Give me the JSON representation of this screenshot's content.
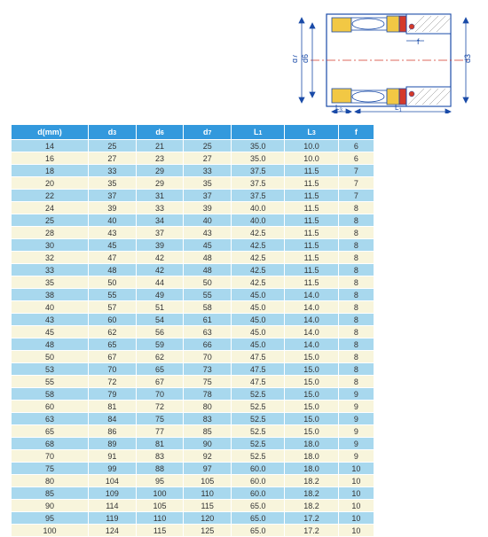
{
  "diagram": {
    "labels": {
      "d3": "d3",
      "d6": "d6",
      "d7": "d7",
      "f": "f",
      "L1": "L1",
      "L3": "L3"
    },
    "colors": {
      "outline": "#1a4ba8",
      "fill_yellow": "#f2c844",
      "fill_red": "#d43a2a",
      "fill_white": "#ffffff",
      "hatch": "#888888",
      "centerline": "#d43a2a"
    }
  },
  "table": {
    "headers": [
      "d(mm)",
      "d3",
      "d6",
      "d7",
      "L1",
      "L3",
      "f"
    ],
    "header_bg": "#3399dd",
    "header_fg": "#ffffff",
    "row_bg_blue": "#a8d8ee",
    "row_bg_yellow": "#f8f5dc",
    "cell_fg": "#333333",
    "rows": [
      [
        "14",
        "25",
        "21",
        "25",
        "35.0",
        "10.0",
        "6"
      ],
      [
        "16",
        "27",
        "23",
        "27",
        "35.0",
        "10.0",
        "6"
      ],
      [
        "18",
        "33",
        "29",
        "33",
        "37.5",
        "11.5",
        "7"
      ],
      [
        "20",
        "35",
        "29",
        "35",
        "37.5",
        "11.5",
        "7"
      ],
      [
        "22",
        "37",
        "31",
        "37",
        "37.5",
        "11.5",
        "7"
      ],
      [
        "24",
        "39",
        "33",
        "39",
        "40.0",
        "11.5",
        "8"
      ],
      [
        "25",
        "40",
        "34",
        "40",
        "40.0",
        "11.5",
        "8"
      ],
      [
        "28",
        "43",
        "37",
        "43",
        "42.5",
        "11.5",
        "8"
      ],
      [
        "30",
        "45",
        "39",
        "45",
        "42.5",
        "11.5",
        "8"
      ],
      [
        "32",
        "47",
        "42",
        "48",
        "42.5",
        "11.5",
        "8"
      ],
      [
        "33",
        "48",
        "42",
        "48",
        "42.5",
        "11.5",
        "8"
      ],
      [
        "35",
        "50",
        "44",
        "50",
        "42.5",
        "11.5",
        "8"
      ],
      [
        "38",
        "55",
        "49",
        "55",
        "45.0",
        "14.0",
        "8"
      ],
      [
        "40",
        "57",
        "51",
        "58",
        "45.0",
        "14.0",
        "8"
      ],
      [
        "43",
        "60",
        "54",
        "61",
        "45.0",
        "14.0",
        "8"
      ],
      [
        "45",
        "62",
        "56",
        "63",
        "45.0",
        "14.0",
        "8"
      ],
      [
        "48",
        "65",
        "59",
        "66",
        "45.0",
        "14.0",
        "8"
      ],
      [
        "50",
        "67",
        "62",
        "70",
        "47.5",
        "15.0",
        "8"
      ],
      [
        "53",
        "70",
        "65",
        "73",
        "47.5",
        "15.0",
        "8"
      ],
      [
        "55",
        "72",
        "67",
        "75",
        "47.5",
        "15.0",
        "8"
      ],
      [
        "58",
        "79",
        "70",
        "78",
        "52.5",
        "15.0",
        "9"
      ],
      [
        "60",
        "81",
        "72",
        "80",
        "52.5",
        "15.0",
        "9"
      ],
      [
        "63",
        "84",
        "75",
        "83",
        "52.5",
        "15.0",
        "9"
      ],
      [
        "65",
        "86",
        "77",
        "85",
        "52.5",
        "15.0",
        "9"
      ],
      [
        "68",
        "89",
        "81",
        "90",
        "52.5",
        "18.0",
        "9"
      ],
      [
        "70",
        "91",
        "83",
        "92",
        "52.5",
        "18.0",
        "9"
      ],
      [
        "75",
        "99",
        "88",
        "97",
        "60.0",
        "18.0",
        "10"
      ],
      [
        "80",
        "104",
        "95",
        "105",
        "60.0",
        "18.2",
        "10"
      ],
      [
        "85",
        "109",
        "100",
        "110",
        "60.0",
        "18.2",
        "10"
      ],
      [
        "90",
        "114",
        "105",
        "115",
        "65.0",
        "18.2",
        "10"
      ],
      [
        "95",
        "119",
        "110",
        "120",
        "65.0",
        "17.2",
        "10"
      ],
      [
        "100",
        "124",
        "115",
        "125",
        "65.0",
        "17.2",
        "10"
      ]
    ]
  }
}
